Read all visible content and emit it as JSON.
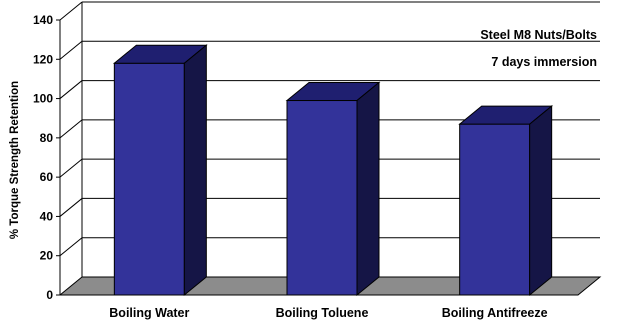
{
  "chart_data": {
    "type": "bar",
    "style": "3d",
    "categories": [
      "Boiling Water",
      "Boiling Toluene",
      "Boiling Antifreeze"
    ],
    "values": [
      118,
      99,
      87
    ],
    "ylabel": "% Torque Strength Retention",
    "ylim": [
      0,
      140
    ],
    "yticks": [
      "0",
      "20",
      "40",
      "60",
      "80",
      "100",
      "120",
      "140"
    ],
    "annotations": [
      "Steel M8 Nuts/Bolts",
      "7 days immersion"
    ],
    "grid": true,
    "colors": {
      "bar_front": "#33339a",
      "bar_top": "#1f1f70",
      "bar_side": "#151546",
      "floor": "#8c8c8c",
      "gridline": "#000000"
    }
  }
}
